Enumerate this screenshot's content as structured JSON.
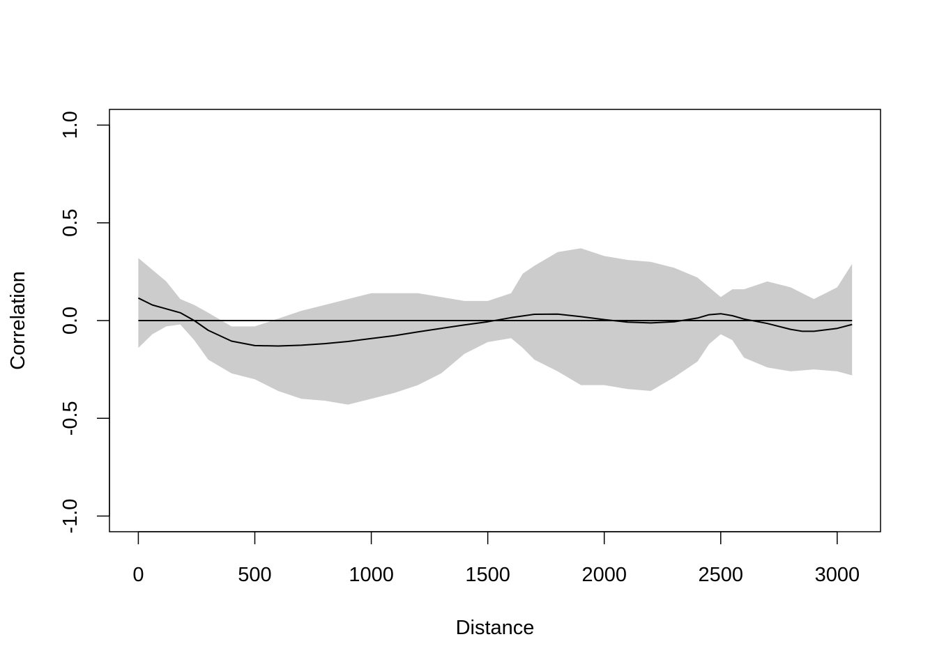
{
  "chart_data": {
    "type": "line",
    "title": "",
    "xlabel": "Distance",
    "ylabel": "Correlation",
    "xlim": [
      -124,
      3186
    ],
    "ylim": [
      -1.08,
      1.08
    ],
    "x_ticks": [
      0,
      500,
      1000,
      1500,
      2000,
      2500,
      3000
    ],
    "x_tick_labels": [
      "0",
      "500",
      "1000",
      "1500",
      "2000",
      "2500",
      "3000"
    ],
    "y_ticks": [
      -1.0,
      -0.5,
      0.0,
      0.5,
      1.0
    ],
    "y_tick_labels": [
      "-1.0",
      "-0.5",
      "0.0",
      "0.5",
      "1.0"
    ],
    "grid": false,
    "reference_line": 0,
    "colors": {
      "envelope": "#cccccc",
      "line": "#000000",
      "frame": "#000000"
    },
    "series": [
      {
        "values_x": [
          0,
          60,
          120,
          180,
          240,
          300,
          400,
          500,
          600,
          700,
          800,
          900,
          1000,
          1100,
          1200,
          1300,
          1400,
          1500,
          1600,
          1700,
          1800,
          1900,
          2000,
          2100,
          2200,
          2300,
          2400,
          2450,
          2500,
          2550,
          2600,
          2700,
          2800,
          2850,
          2900,
          3000,
          3064
        ],
        "values_y": [
          0.115,
          0.08,
          0.06,
          0.04,
          0.0,
          -0.05,
          -0.105,
          -0.128,
          -0.13,
          -0.126,
          -0.118,
          -0.107,
          -0.092,
          -0.077,
          -0.058,
          -0.04,
          -0.022,
          -0.006,
          0.015,
          0.032,
          0.033,
          0.02,
          0.005,
          -0.008,
          -0.012,
          -0.006,
          0.013,
          0.03,
          0.035,
          0.025,
          0.008,
          -0.015,
          -0.045,
          -0.055,
          -0.055,
          -0.04,
          -0.02
        ]
      }
    ],
    "envelope": {
      "x": [
        0,
        60,
        120,
        180,
        240,
        300,
        400,
        500,
        600,
        700,
        800,
        900,
        1000,
        1100,
        1200,
        1300,
        1400,
        1500,
        1600,
        1650,
        1700,
        1800,
        1900,
        2000,
        2100,
        2200,
        2300,
        2400,
        2450,
        2500,
        2550,
        2600,
        2700,
        2800,
        2900,
        3000,
        3064
      ],
      "lower": [
        -0.14,
        -0.07,
        -0.03,
        -0.02,
        -0.1,
        -0.2,
        -0.27,
        -0.3,
        -0.36,
        -0.4,
        -0.41,
        -0.43,
        -0.4,
        -0.37,
        -0.33,
        -0.27,
        -0.17,
        -0.11,
        -0.09,
        -0.14,
        -0.2,
        -0.26,
        -0.33,
        -0.33,
        -0.35,
        -0.36,
        -0.29,
        -0.21,
        -0.12,
        -0.07,
        -0.1,
        -0.19,
        -0.24,
        -0.26,
        -0.25,
        -0.26,
        -0.28
      ],
      "upper": [
        0.32,
        0.26,
        0.2,
        0.11,
        0.08,
        0.04,
        -0.03,
        -0.03,
        0.01,
        0.05,
        0.08,
        0.11,
        0.14,
        0.14,
        0.14,
        0.12,
        0.1,
        0.1,
        0.14,
        0.24,
        0.28,
        0.35,
        0.37,
        0.33,
        0.31,
        0.3,
        0.27,
        0.22,
        0.17,
        0.12,
        0.16,
        0.16,
        0.2,
        0.17,
        0.11,
        0.17,
        0.29
      ]
    }
  }
}
